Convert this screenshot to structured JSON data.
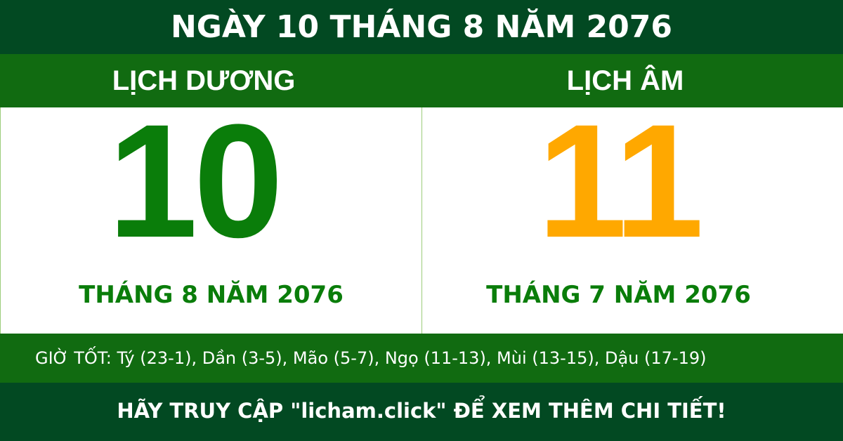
{
  "header": {
    "title": "NGÀY 10 THÁNG 8 NĂM 2076"
  },
  "solar": {
    "label": "LỊCH DƯƠNG",
    "day": "10",
    "month_year": "THÁNG 8 NĂM 2076"
  },
  "lunar": {
    "label": "LỊCH ÂM",
    "day": "11",
    "month_year": "THÁNG 7 NĂM 2076"
  },
  "good_hours": "GIỜ TỐT: Tý (23-1), Dần (3-5), Mão (5-7), Ngọ (11-13), Mùi (13-15), Dậu (17-19)",
  "footer": "HÃY TRUY CẬP \"licham.click\" ĐỂ XEM THÊM CHI TIẾT!",
  "colors": {
    "dark_green": "#024922",
    "green": "#116b11",
    "solar_day": "#0a7d0a",
    "lunar_day": "#ffa800"
  }
}
